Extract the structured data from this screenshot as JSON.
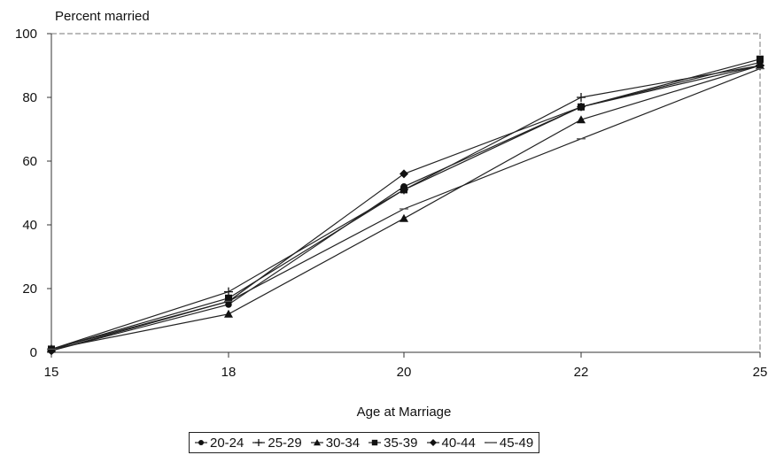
{
  "chart_data": {
    "type": "line",
    "title": "",
    "ylabel": "Percent married",
    "xlabel": "Age at Marriage",
    "categories": [
      "15",
      "18",
      "20",
      "22",
      "25"
    ],
    "ylim": [
      0,
      100
    ],
    "yticks": [
      0,
      20,
      40,
      60,
      80,
      100
    ],
    "grid": false,
    "legend_position": "bottom",
    "series": [
      {
        "name": "20-24",
        "marker": "circle",
        "values": [
          0.5,
          15,
          52,
          77,
          91
        ]
      },
      {
        "name": "25-29",
        "marker": "plus",
        "values": [
          1,
          19,
          51,
          80,
          90
        ]
      },
      {
        "name": "30-34",
        "marker": "triangle",
        "values": [
          1,
          12,
          42,
          73,
          90
        ]
      },
      {
        "name": "35-39",
        "marker": "square",
        "values": [
          1,
          17,
          51,
          77,
          92
        ]
      },
      {
        "name": "40-44",
        "marker": "diamond",
        "values": [
          0.5,
          16,
          56,
          77,
          90
        ]
      },
      {
        "name": "45-49",
        "marker": "dash",
        "values": [
          1,
          16,
          45,
          67,
          89
        ]
      }
    ]
  }
}
